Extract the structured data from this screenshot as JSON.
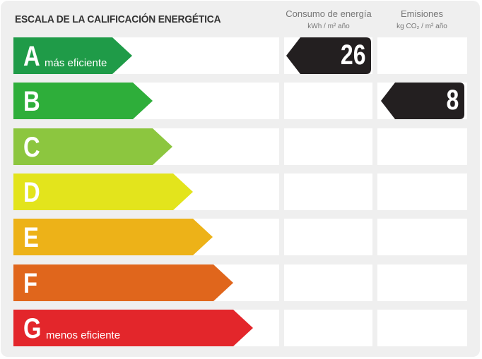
{
  "title": "ESCALA DE LA CALIFICACIÓN ENERGÉTICA",
  "columns": {
    "consumo": {
      "label": "Consumo de energía",
      "unit": "kWh / m² año"
    },
    "emisiones": {
      "label": "Emisiones",
      "unit": "kg CO₂ / m² año"
    }
  },
  "ratings": [
    {
      "letter": "A",
      "desc": "más eficiente",
      "color": "#1f9b48"
    },
    {
      "letter": "B",
      "desc": "",
      "color": "#2eae3a"
    },
    {
      "letter": "C",
      "desc": "",
      "color": "#8cc63f"
    },
    {
      "letter": "D",
      "desc": "",
      "color": "#e3e41c"
    },
    {
      "letter": "E",
      "desc": "",
      "color": "#edb218"
    },
    {
      "letter": "F",
      "desc": "",
      "color": "#e0661c"
    },
    {
      "letter": "G",
      "desc": "menos eficiente",
      "color": "#e3262b"
    }
  ],
  "consumo_value": {
    "value": "26",
    "rating": "A"
  },
  "emisiones_value": {
    "value": "8",
    "rating": "B"
  },
  "box_color": "#231f20"
}
